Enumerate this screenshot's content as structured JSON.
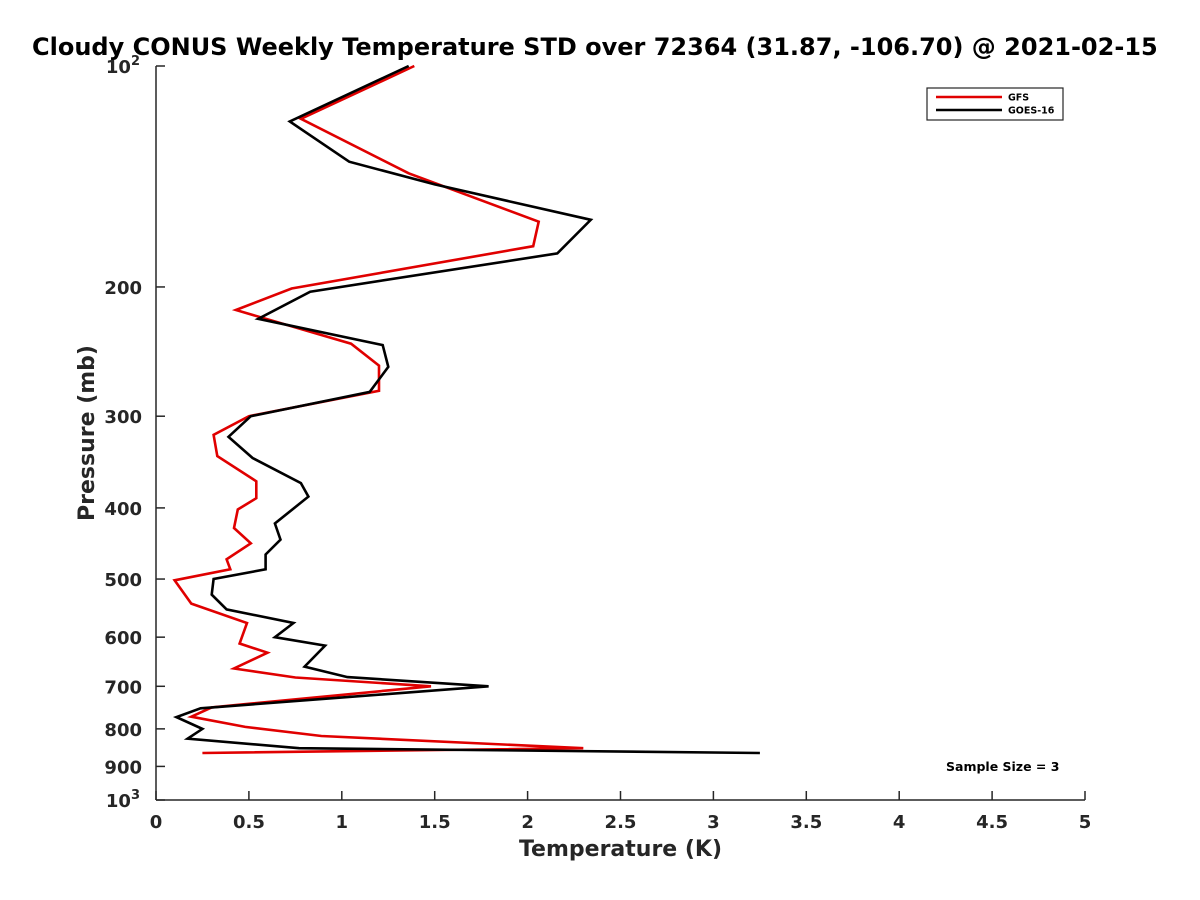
{
  "chart_data": {
    "type": "line",
    "title": "Cloudy CONUS Weekly Temperature STD over 72364 (31.87, -106.70) @ 2021-02-15",
    "xlabel": "Temperature (K)",
    "ylabel": "Pressure (mb)",
    "xlim": [
      0,
      5
    ],
    "ylim": [
      100,
      1000
    ],
    "y_scale": "log",
    "y_reversed": true,
    "grid": false,
    "legend_position": "top-right",
    "x_ticks": [
      {
        "value": 0,
        "label": "0"
      },
      {
        "value": 0.5,
        "label": "0.5"
      },
      {
        "value": 1,
        "label": "1"
      },
      {
        "value": 1.5,
        "label": "1.5"
      },
      {
        "value": 2,
        "label": "2"
      },
      {
        "value": 2.5,
        "label": "2.5"
      },
      {
        "value": 3,
        "label": "3"
      },
      {
        "value": 3.5,
        "label": "3.5"
      },
      {
        "value": 4,
        "label": "4"
      },
      {
        "value": 4.5,
        "label": "4.5"
      },
      {
        "value": 5,
        "label": "5"
      }
    ],
    "y_ticks": [
      {
        "value": 100,
        "base": "10",
        "exp": "2"
      },
      {
        "value": 200,
        "base": "200",
        "exp": ""
      },
      {
        "value": 300,
        "base": "300",
        "exp": ""
      },
      {
        "value": 400,
        "base": "400",
        "exp": ""
      },
      {
        "value": 500,
        "base": "500",
        "exp": ""
      },
      {
        "value": 600,
        "base": "600",
        "exp": ""
      },
      {
        "value": 700,
        "base": "700",
        "exp": ""
      },
      {
        "value": 800,
        "base": "800",
        "exp": ""
      },
      {
        "value": 900,
        "base": "900",
        "exp": ""
      },
      {
        "value": 1000,
        "base": "10",
        "exp": "3"
      }
    ],
    "series": [
      {
        "name": "GFS",
        "color": "#e00000",
        "points": [
          {
            "x": 1.39,
            "y": 100
          },
          {
            "x": 0.78,
            "y": 118
          },
          {
            "x": 1.36,
            "y": 140
          },
          {
            "x": 2.06,
            "y": 163
          },
          {
            "x": 2.03,
            "y": 176
          },
          {
            "x": 0.73,
            "y": 201
          },
          {
            "x": 0.43,
            "y": 215
          },
          {
            "x": 1.05,
            "y": 239
          },
          {
            "x": 1.2,
            "y": 256
          },
          {
            "x": 1.2,
            "y": 277
          },
          {
            "x": 0.5,
            "y": 300
          },
          {
            "x": 0.31,
            "y": 318
          },
          {
            "x": 0.33,
            "y": 340
          },
          {
            "x": 0.54,
            "y": 368
          },
          {
            "x": 0.54,
            "y": 388
          },
          {
            "x": 0.44,
            "y": 402
          },
          {
            "x": 0.42,
            "y": 426
          },
          {
            "x": 0.51,
            "y": 447
          },
          {
            "x": 0.38,
            "y": 470
          },
          {
            "x": 0.4,
            "y": 485
          },
          {
            "x": 0.1,
            "y": 502
          },
          {
            "x": 0.19,
            "y": 540
          },
          {
            "x": 0.49,
            "y": 574
          },
          {
            "x": 0.45,
            "y": 612
          },
          {
            "x": 0.6,
            "y": 630
          },
          {
            "x": 0.42,
            "y": 662
          },
          {
            "x": 0.75,
            "y": 681
          },
          {
            "x": 1.48,
            "y": 700
          },
          {
            "x": 0.3,
            "y": 748
          },
          {
            "x": 0.19,
            "y": 770
          },
          {
            "x": 0.48,
            "y": 795
          },
          {
            "x": 0.89,
            "y": 818
          },
          {
            "x": 2.3,
            "y": 850
          },
          {
            "x": 0.25,
            "y": 863
          }
        ]
      },
      {
        "name": "GOES-16",
        "color": "#000000",
        "points": [
          {
            "x": 1.36,
            "y": 100
          },
          {
            "x": 0.72,
            "y": 119
          },
          {
            "x": 1.04,
            "y": 135
          },
          {
            "x": 1.5,
            "y": 145
          },
          {
            "x": 2.34,
            "y": 162
          },
          {
            "x": 2.16,
            "y": 180
          },
          {
            "x": 0.83,
            "y": 203
          },
          {
            "x": 0.55,
            "y": 221
          },
          {
            "x": 1.22,
            "y": 240
          },
          {
            "x": 1.25,
            "y": 257
          },
          {
            "x": 1.15,
            "y": 278
          },
          {
            "x": 0.51,
            "y": 300
          },
          {
            "x": 0.39,
            "y": 320
          },
          {
            "x": 0.52,
            "y": 342
          },
          {
            "x": 0.78,
            "y": 370
          },
          {
            "x": 0.82,
            "y": 386
          },
          {
            "x": 0.64,
            "y": 420
          },
          {
            "x": 0.67,
            "y": 442
          },
          {
            "x": 0.59,
            "y": 463
          },
          {
            "x": 0.59,
            "y": 485
          },
          {
            "x": 0.31,
            "y": 500
          },
          {
            "x": 0.3,
            "y": 525
          },
          {
            "x": 0.38,
            "y": 550
          },
          {
            "x": 0.74,
            "y": 574
          },
          {
            "x": 0.64,
            "y": 600
          },
          {
            "x": 0.91,
            "y": 616
          },
          {
            "x": 0.8,
            "y": 658
          },
          {
            "x": 1.03,
            "y": 680
          },
          {
            "x": 1.79,
            "y": 700
          },
          {
            "x": 0.24,
            "y": 750
          },
          {
            "x": 0.11,
            "y": 771
          },
          {
            "x": 0.25,
            "y": 800
          },
          {
            "x": 0.17,
            "y": 825
          },
          {
            "x": 0.77,
            "y": 850
          },
          {
            "x": 3.25,
            "y": 863
          }
        ]
      }
    ],
    "annotation": "Sample Size = 3"
  }
}
